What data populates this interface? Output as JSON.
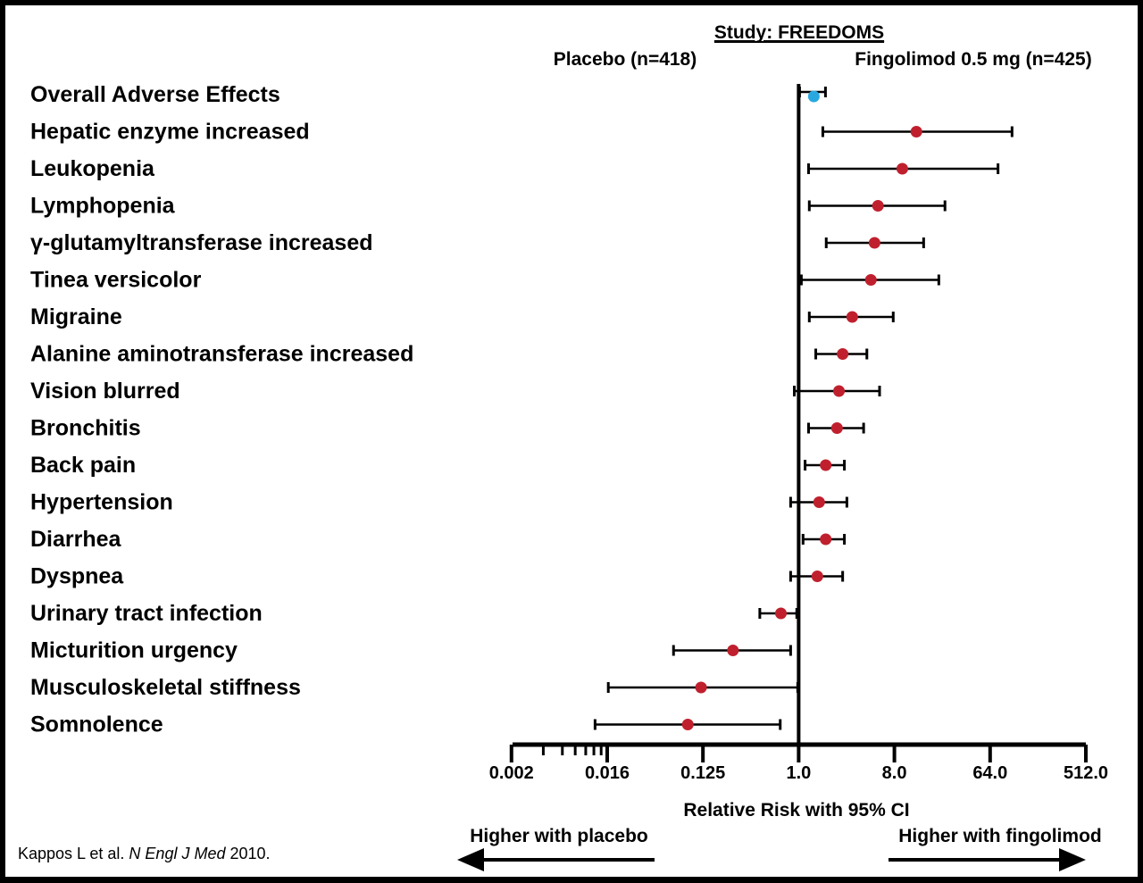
{
  "chart_data": {
    "type": "forest",
    "title": "Study: FREEDOMS",
    "left_group": "Placebo (n=418)",
    "right_group": "Fingolimod 0.5 mg (n=425)",
    "xlabel": "Relative Risk with 95% CI",
    "xscale": "log2",
    "xlim": [
      0.002,
      512.0
    ],
    "reference_line": 1.0,
    "tick_labels": [
      "0.002",
      "0.016",
      "0.125",
      "1.0",
      "8.0",
      "64.0",
      "512.0"
    ],
    "tick_values": [
      0.001953,
      0.015625,
      0.125,
      1.0,
      8.0,
      64.0,
      512.0
    ],
    "minor_ticks": [
      0.0039,
      0.0059,
      0.0078,
      0.0098,
      0.0117,
      0.0137
    ],
    "direction_left": "Higher with placebo",
    "direction_right": "Higher with fingolimod",
    "colors": {
      "overall": "#29a8e0",
      "events": "#c0202e",
      "lines": "#000000"
    },
    "rows": [
      {
        "label": "Overall Adverse Effects",
        "rr": 1.39,
        "lo": 1.02,
        "hi": 1.79,
        "kind": "overall"
      },
      {
        "label": "Hepatic enzyme increased",
        "rr": 12.9,
        "lo": 1.69,
        "hi": 103.0,
        "kind": "event"
      },
      {
        "label": "Leukopenia",
        "rr": 9.5,
        "lo": 1.24,
        "hi": 76.0,
        "kind": "event"
      },
      {
        "label": "Lymphopenia",
        "rr": 5.6,
        "lo": 1.26,
        "hi": 24.0,
        "kind": "event"
      },
      {
        "label": "γ-glutamyltransferase increased",
        "rr": 5.2,
        "lo": 1.82,
        "hi": 15.1,
        "kind": "event"
      },
      {
        "label": "Tinea versicolor",
        "rr": 4.8,
        "lo": 1.06,
        "hi": 21.0,
        "kind": "event"
      },
      {
        "label": "Migraine",
        "rr": 3.2,
        "lo": 1.26,
        "hi": 7.8,
        "kind": "event"
      },
      {
        "label": "Alanine aminotransferase increased",
        "rr": 2.6,
        "lo": 1.45,
        "hi": 4.4,
        "kind": "event"
      },
      {
        "label": "Vision blurred",
        "rr": 2.4,
        "lo": 0.91,
        "hi": 5.8,
        "kind": "event"
      },
      {
        "label": "Bronchitis",
        "rr": 2.3,
        "lo": 1.24,
        "hi": 4.1,
        "kind": "event"
      },
      {
        "label": "Back pain",
        "rr": 1.8,
        "lo": 1.15,
        "hi": 2.7,
        "kind": "event"
      },
      {
        "label": "Hypertension",
        "rr": 1.56,
        "lo": 0.84,
        "hi": 2.85,
        "kind": "event"
      },
      {
        "label": "Diarrhea",
        "rr": 1.8,
        "lo": 1.1,
        "hi": 2.7,
        "kind": "event"
      },
      {
        "label": "Dyspnea",
        "rr": 1.5,
        "lo": 0.84,
        "hi": 2.6,
        "kind": "event"
      },
      {
        "label": "Urinary tract infection",
        "rr": 0.68,
        "lo": 0.43,
        "hi": 0.96,
        "kind": "event"
      },
      {
        "label": "Micturition urgency",
        "rr": 0.24,
        "lo": 0.066,
        "hi": 0.84,
        "kind": "event"
      },
      {
        "label": "Musculoskeletal stiffness",
        "rr": 0.12,
        "lo": 0.016,
        "hi": 0.98,
        "kind": "event"
      },
      {
        "label": "Somnolence",
        "rr": 0.09,
        "lo": 0.012,
        "hi": 0.67,
        "kind": "event"
      }
    ]
  },
  "citation": {
    "authors": "Kappos L et al. ",
    "journal": "N Engl J Med",
    "year": " 2010."
  }
}
